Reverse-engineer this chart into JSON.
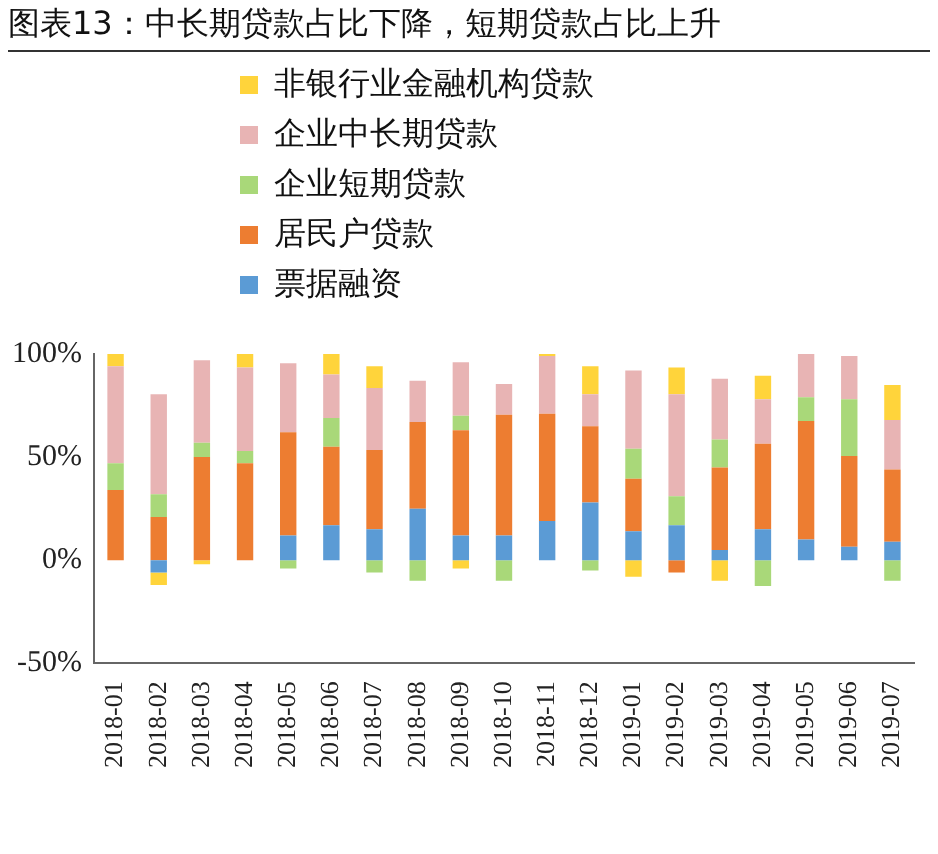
{
  "chart_data": {
    "type": "bar",
    "title": "图表13：中长期贷款占比下降，短期贷款占比上升",
    "stacked": true,
    "legend": "top left",
    "categories": [
      "2018-01",
      "2018-02",
      "2018-03",
      "2018-04",
      "2018-05",
      "2018-06",
      "2018-07",
      "2018-08",
      "2018-09",
      "2018-10",
      "2018-11",
      "2018-12",
      "2019-01",
      "2019-02",
      "2019-03",
      "2019-04",
      "2019-05",
      "2019-06",
      "2019-07"
    ],
    "ylim": [
      -50,
      100
    ],
    "yticks": [
      {
        "value": -50,
        "label": "-50%"
      },
      {
        "value": 0,
        "label": "0%"
      },
      {
        "value": 50,
        "label": "50%"
      },
      {
        "value": 100,
        "label": "100%"
      }
    ],
    "series": [
      {
        "name": "票据融资",
        "color": "#5b9bd5",
        "values": [
          0,
          -6,
          0,
          0,
          12,
          17,
          15,
          25,
          12,
          12,
          19,
          28,
          14,
          17,
          5,
          15,
          10,
          6.5,
          9
        ]
      },
      {
        "name": "居民户贷款",
        "color": "#ed7d31",
        "values": [
          34,
          21,
          50,
          47,
          50,
          38,
          38.5,
          42,
          51,
          58.5,
          52,
          37,
          25.5,
          -6,
          40,
          41.5,
          57.5,
          44,
          35
        ]
      },
      {
        "name": "企业短期贷款",
        "color": "#a9d879",
        "values": [
          13,
          11,
          7,
          6,
          -4,
          14,
          -6,
          -10,
          7,
          -10,
          0,
          -5,
          14.5,
          14,
          13.5,
          -12.5,
          11.5,
          27.5,
          -10
        ]
      },
      {
        "name": "企业中长期贷款",
        "color": "#e8b4b4",
        "values": [
          47,
          48.5,
          40,
          40.5,
          33.5,
          21,
          30,
          20,
          26,
          15,
          28,
          15.5,
          38,
          49.5,
          29.5,
          21.5,
          21.5,
          21,
          24
        ]
      },
      {
        "name": "非银行业金融机构贷款",
        "color": "#ffd43b",
        "values": [
          6.5,
          -6,
          -2,
          6.5,
          0,
          10,
          10.5,
          0,
          -4,
          0,
          1,
          13.5,
          -8,
          13,
          -10,
          11.5,
          0,
          0,
          17
        ]
      }
    ]
  }
}
